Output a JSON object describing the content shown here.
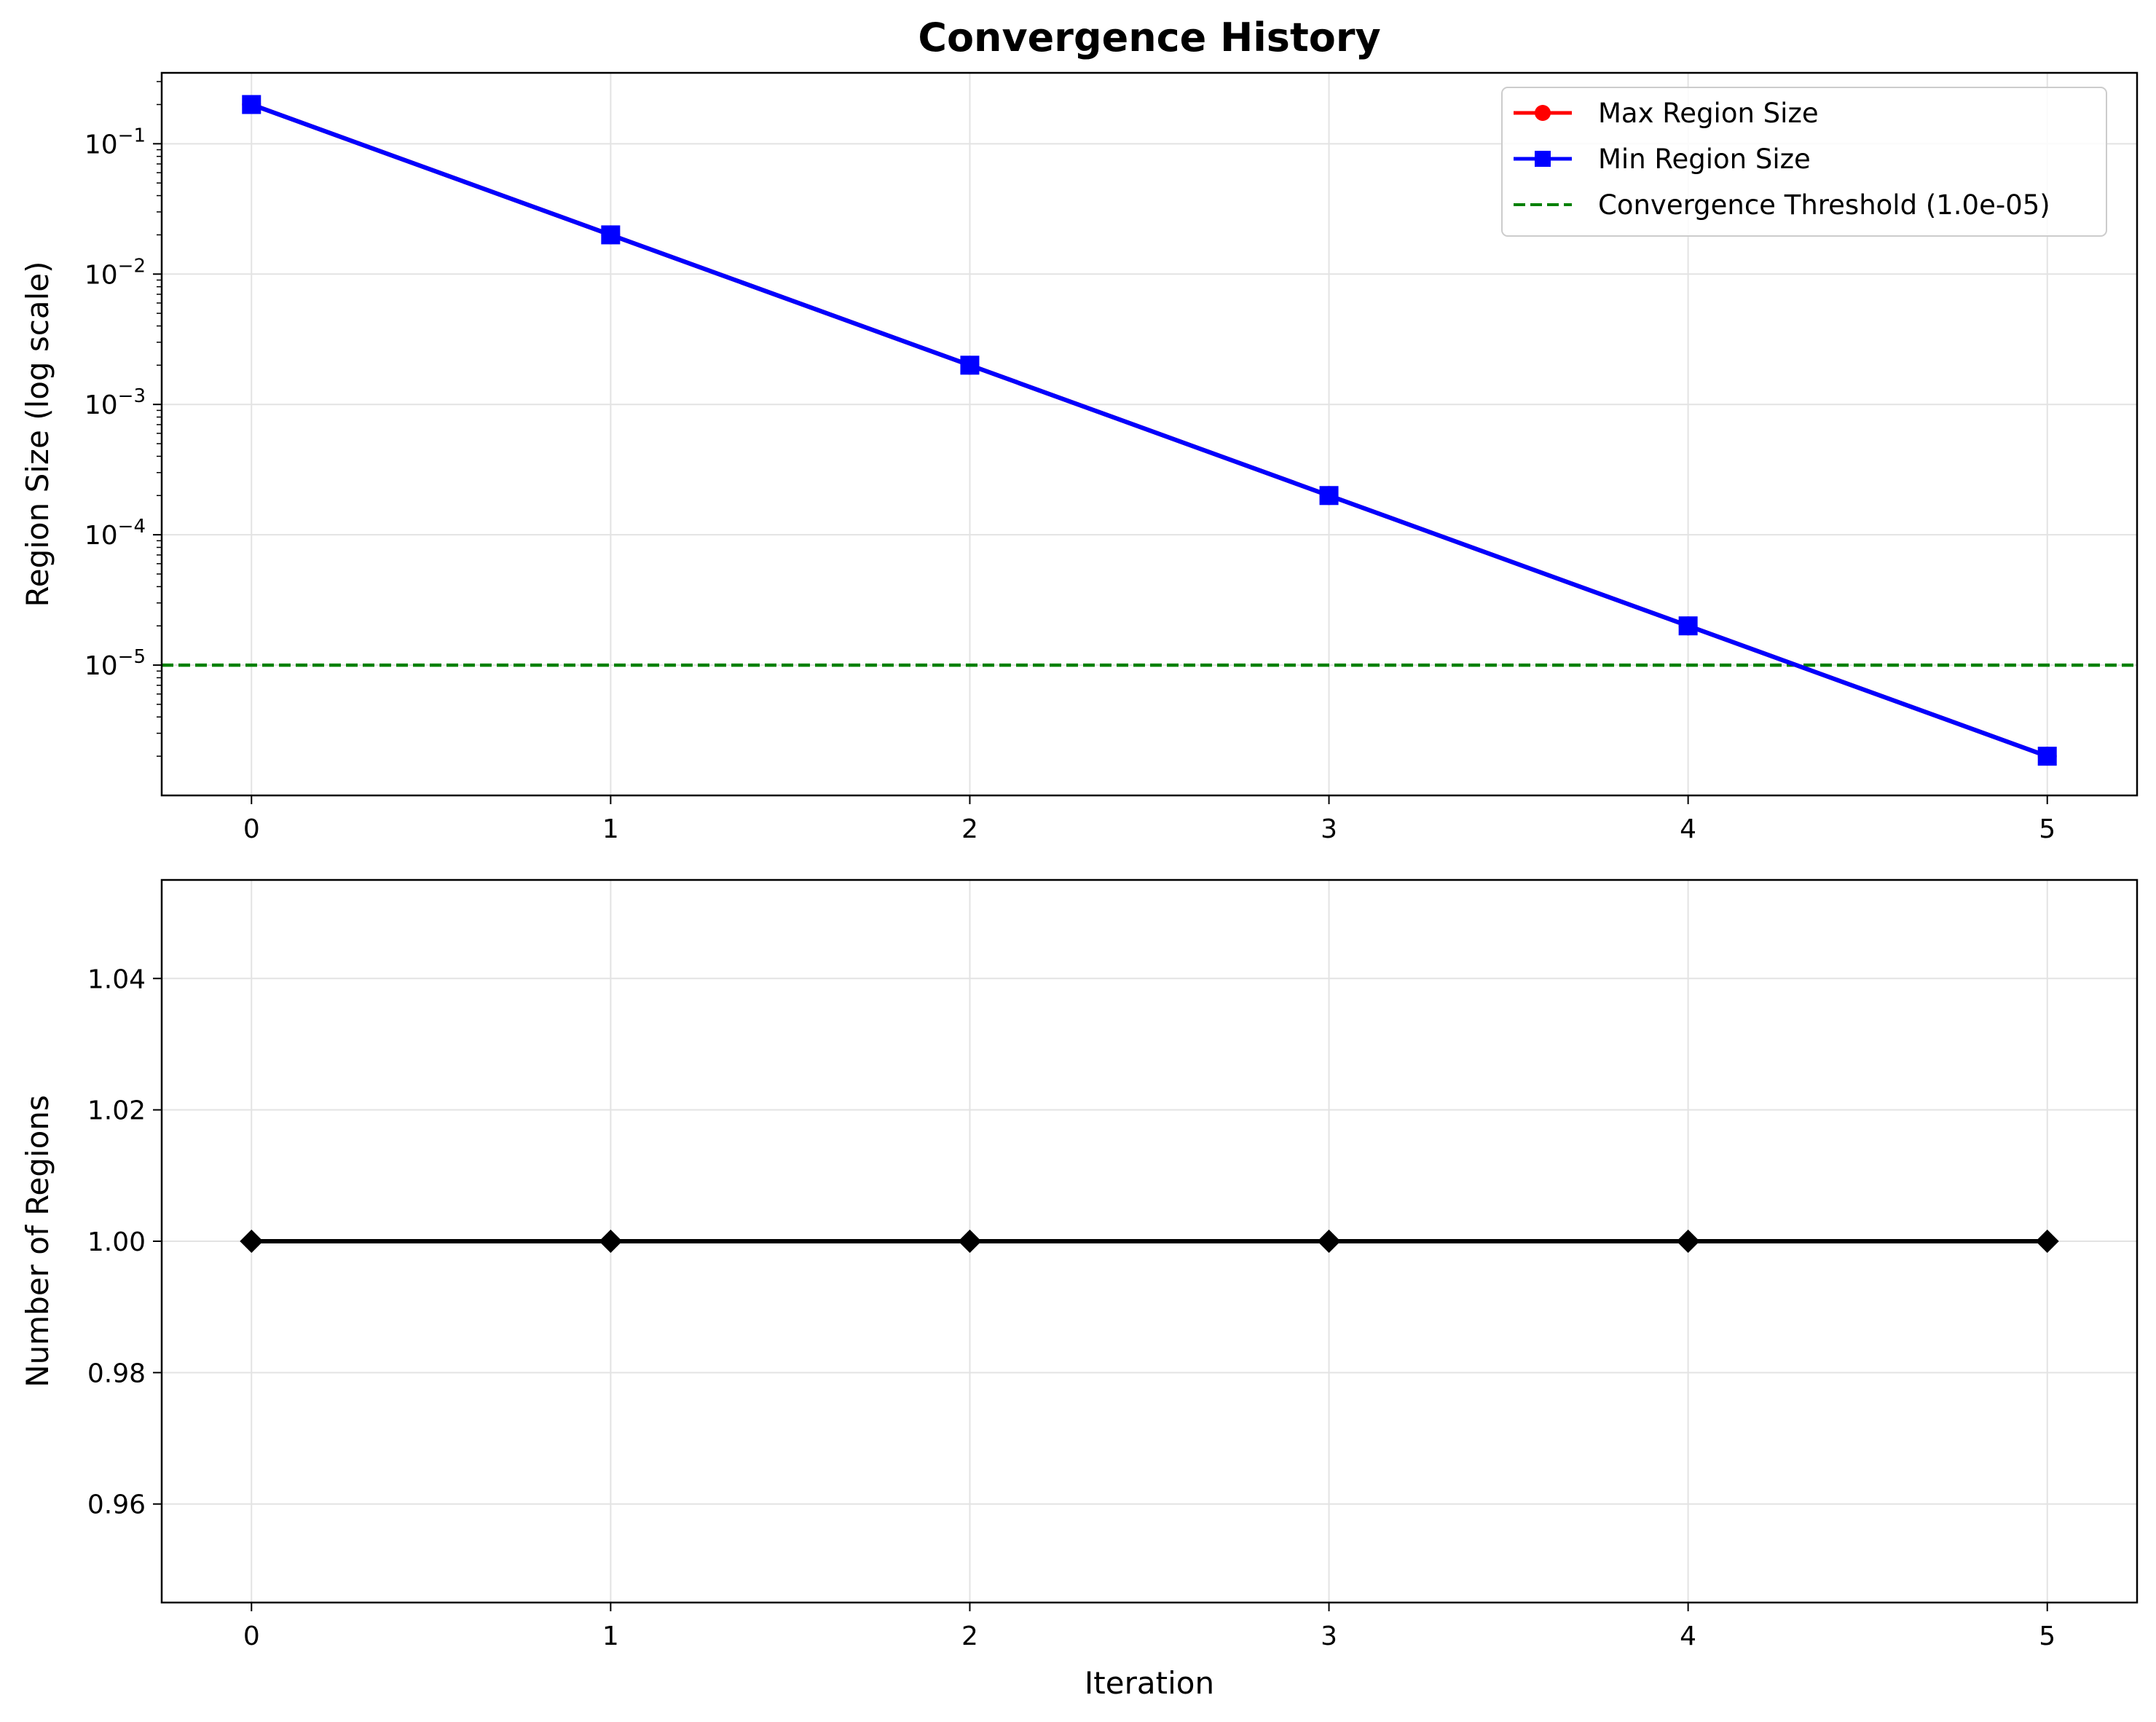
{
  "chart_data": [
    {
      "type": "line",
      "title": "Convergence History",
      "xlabel": "",
      "ylabel": "Region Size (log scale)",
      "yscale": "log",
      "x": [
        0,
        1,
        2,
        3,
        4,
        5
      ],
      "xlim": [
        -0.25,
        5.25
      ],
      "ylim": [
        1e-06,
        0.35
      ],
      "x_ticks": [
        "0",
        "1",
        "2",
        "3",
        "4",
        "5"
      ],
      "y_ticks": [
        {
          "value": 0.1,
          "base": "10",
          "exp": "−1"
        },
        {
          "value": 0.01,
          "base": "10",
          "exp": "−2"
        },
        {
          "value": 0.001,
          "base": "10",
          "exp": "−3"
        },
        {
          "value": 0.0001,
          "base": "10",
          "exp": "−4"
        },
        {
          "value": 1e-05,
          "base": "10",
          "exp": "−5"
        }
      ],
      "grid": true,
      "legend_position": "top-right",
      "series": [
        {
          "name": "Max Region Size",
          "color": "#ff0000",
          "marker": "circle",
          "values": [
            0.2,
            0.02,
            0.002,
            0.0002,
            2e-05,
            2e-06
          ]
        },
        {
          "name": "Min Region Size",
          "color": "#0000ff",
          "marker": "square",
          "values": [
            0.2,
            0.02,
            0.002,
            0.0002,
            2e-05,
            2e-06
          ]
        }
      ],
      "threshold": {
        "name": "Convergence Threshold (1.0e-05)",
        "value": 1e-05,
        "color": "#008000",
        "style": "dashed"
      }
    },
    {
      "type": "line",
      "title": "",
      "xlabel": "Iteration",
      "ylabel": "Number of Regions",
      "x": [
        0,
        1,
        2,
        3,
        4,
        5
      ],
      "xlim": [
        -0.25,
        5.25
      ],
      "ylim": [
        0.945,
        1.055
      ],
      "x_ticks": [
        "0",
        "1",
        "2",
        "3",
        "4",
        "5"
      ],
      "y_ticks": [
        "0.96",
        "0.98",
        "1.00",
        "1.02",
        "1.04"
      ],
      "grid": true,
      "series": [
        {
          "color": "#000000",
          "marker": "diamond",
          "values": [
            1,
            1,
            1,
            1,
            1,
            1
          ]
        }
      ]
    }
  ]
}
